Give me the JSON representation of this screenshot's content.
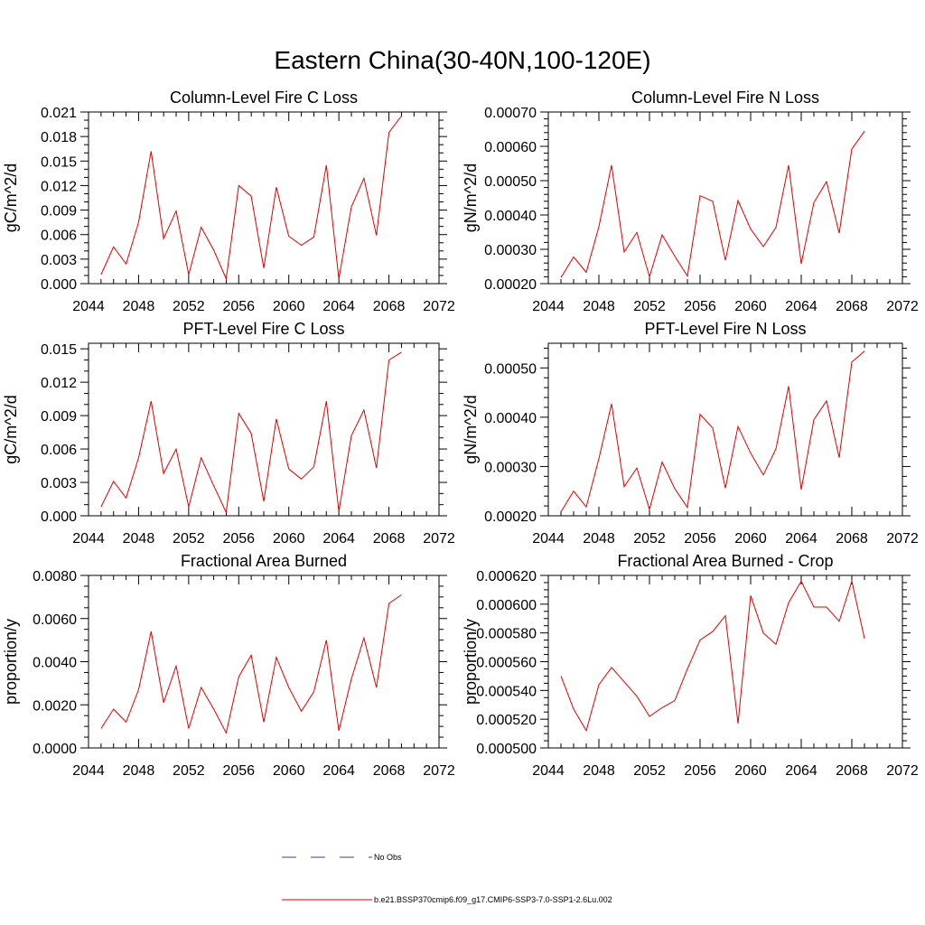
{
  "figure": {
    "title": "Eastern China(30-40N,100-120E)"
  },
  "legend": {
    "items": [
      {
        "label": "No Obs",
        "style": "dashed",
        "color": "#3b3b8f"
      },
      {
        "label": "b.e21.BSSP370cmip6.f09_g17.CMIP6-SSP3-7.0-SSP1-2.6Lu.002",
        "style": "solid",
        "color": "#e00000"
      }
    ]
  },
  "chart_data": [
    {
      "type": "line",
      "title": "Column-Level Fire C Loss",
      "ylabel": "gC/m^2/d",
      "xlim": [
        2044,
        2072
      ],
      "ylim": [
        0.0,
        0.021
      ],
      "xticks": [
        2044,
        2048,
        2052,
        2056,
        2060,
        2064,
        2068,
        2072
      ],
      "xtick_labels": [
        "2044",
        "2048",
        "2052",
        "2056",
        "2060",
        "2064",
        "2068",
        "2072"
      ],
      "yticks": [
        0,
        0.003,
        0.006,
        0.009,
        0.012,
        0.015,
        0.018,
        0.021
      ],
      "ytick_labels": [
        "0.000",
        "0.003",
        "0.006",
        "0.009",
        "0.012",
        "0.015",
        "0.018",
        "0.021"
      ],
      "y_minor_per_major": 3,
      "series": [
        {
          "color": "#e00000",
          "x": [
            2045,
            2046,
            2047,
            2048,
            2049,
            2050,
            2051,
            2052,
            2053,
            2054,
            2055,
            2056,
            2057,
            2058,
            2059,
            2060,
            2061,
            2062,
            2063,
            2064,
            2065,
            2066,
            2067,
            2068,
            2069
          ],
          "y": [
            0.0011,
            0.0045,
            0.0024,
            0.0075,
            0.0162,
            0.0055,
            0.0089,
            0.0011,
            0.0069,
            0.0041,
            0.0006,
            0.012,
            0.0107,
            0.0019,
            0.0118,
            0.0058,
            0.0047,
            0.0057,
            0.0145,
            0.0006,
            0.0094,
            0.0129,
            0.0059,
            0.0185,
            0.0205
          ]
        }
      ]
    },
    {
      "type": "line",
      "title": "Column-Level Fire N Loss",
      "ylabel": "gN/m^2/d",
      "xlim": [
        2044,
        2072
      ],
      "ylim": [
        0.0002,
        0.0007
      ],
      "xticks": [
        2044,
        2048,
        2052,
        2056,
        2060,
        2064,
        2068,
        2072
      ],
      "xtick_labels": [
        "2044",
        "2048",
        "2052",
        "2056",
        "2060",
        "2064",
        "2068",
        "2072"
      ],
      "yticks": [
        0.0002,
        0.0003,
        0.0004,
        0.0005,
        0.0006,
        0.0007
      ],
      "ytick_labels": [
        "0.00020",
        "0.00030",
        "0.00040",
        "0.00050",
        "0.00060",
        "0.00070"
      ],
      "y_minor_per_major": 5,
      "series": [
        {
          "color": "#e00000",
          "x": [
            2045,
            2046,
            2047,
            2048,
            2049,
            2050,
            2051,
            2052,
            2053,
            2054,
            2055,
            2056,
            2057,
            2058,
            2059,
            2060,
            2061,
            2062,
            2063,
            2064,
            2065,
            2066,
            2067,
            2068,
            2069
          ],
          "y": [
            0.000218,
            0.000278,
            0.000233,
            0.000366,
            0.000545,
            0.000292,
            0.000349,
            0.00022,
            0.000342,
            0.00028,
            0.000222,
            0.000456,
            0.00044,
            0.000268,
            0.000442,
            0.000359,
            0.000308,
            0.000364,
            0.000545,
            0.000258,
            0.000436,
            0.000497,
            0.000347,
            0.000592,
            0.000644
          ]
        }
      ]
    },
    {
      "type": "line",
      "title": "PFT-Level Fire C Loss",
      "ylabel": "gC/m^2/d",
      "xlim": [
        2044,
        2072
      ],
      "ylim": [
        0.0,
        0.0155
      ],
      "xticks": [
        2044,
        2048,
        2052,
        2056,
        2060,
        2064,
        2068,
        2072
      ],
      "xtick_labels": [
        "2044",
        "2048",
        "2052",
        "2056",
        "2060",
        "2064",
        "2068",
        "2072"
      ],
      "yticks": [
        0,
        0.003,
        0.006,
        0.009,
        0.012,
        0.015
      ],
      "ytick_labels": [
        "0.000",
        "0.003",
        "0.006",
        "0.009",
        "0.012",
        "0.015"
      ],
      "y_minor_per_major": 3,
      "series": [
        {
          "color": "#e00000",
          "x": [
            2045,
            2046,
            2047,
            2048,
            2049,
            2050,
            2051,
            2052,
            2053,
            2054,
            2055,
            2056,
            2057,
            2058,
            2059,
            2060,
            2061,
            2062,
            2063,
            2064,
            2065,
            2066,
            2067,
            2068,
            2069
          ],
          "y": [
            0.0008,
            0.0031,
            0.0016,
            0.0052,
            0.0103,
            0.0038,
            0.006,
            0.0008,
            0.0052,
            0.0027,
            0.0003,
            0.0092,
            0.0074,
            0.0013,
            0.0087,
            0.0042,
            0.0033,
            0.0044,
            0.0103,
            0.0004,
            0.0072,
            0.0095,
            0.0043,
            0.014,
            0.0147
          ]
        }
      ]
    },
    {
      "type": "line",
      "title": "PFT-Level Fire N Loss",
      "ylabel": "gN/m^2/d",
      "xlim": [
        2044,
        2072
      ],
      "ylim": [
        0.0002,
        0.00055
      ],
      "xticks": [
        2044,
        2048,
        2052,
        2056,
        2060,
        2064,
        2068,
        2072
      ],
      "xtick_labels": [
        "2044",
        "2048",
        "2052",
        "2056",
        "2060",
        "2064",
        "2068",
        "2072"
      ],
      "yticks": [
        0.0002,
        0.0003,
        0.0004,
        0.0005
      ],
      "ytick_labels": [
        "0.00020",
        "0.00030",
        "0.00040",
        "0.00050"
      ],
      "y_minor_per_major": 5,
      "series": [
        {
          "color": "#e00000",
          "x": [
            2045,
            2046,
            2047,
            2048,
            2049,
            2050,
            2051,
            2052,
            2053,
            2054,
            2055,
            2056,
            2057,
            2058,
            2059,
            2060,
            2061,
            2062,
            2063,
            2064,
            2065,
            2066,
            2067,
            2068,
            2069
          ],
          "y": [
            0.000208,
            0.00025,
            0.000218,
            0.000316,
            0.000427,
            0.000259,
            0.000297,
            0.000213,
            0.000309,
            0.000255,
            0.000217,
            0.000406,
            0.000378,
            0.000256,
            0.000381,
            0.000327,
            0.000283,
            0.000336,
            0.000463,
            0.000253,
            0.000395,
            0.000433,
            0.000318,
            0.000512,
            0.000534
          ]
        }
      ]
    },
    {
      "type": "line",
      "title": "Fractional Area Burned",
      "ylabel": "proportion/y",
      "xlim": [
        2044,
        2072
      ],
      "ylim": [
        0.0,
        0.008
      ],
      "xticks": [
        2044,
        2048,
        2052,
        2056,
        2060,
        2064,
        2068,
        2072
      ],
      "xtick_labels": [
        "2044",
        "2048",
        "2052",
        "2056",
        "2060",
        "2064",
        "2068",
        "2072"
      ],
      "yticks": [
        0,
        0.002,
        0.004,
        0.006,
        0.008
      ],
      "ytick_labels": [
        "0.0000",
        "0.0020",
        "0.0040",
        "0.0060",
        "0.0080"
      ],
      "y_minor_per_major": 4,
      "series": [
        {
          "color": "#e00000",
          "x": [
            2045,
            2046,
            2047,
            2048,
            2049,
            2050,
            2051,
            2052,
            2053,
            2054,
            2055,
            2056,
            2057,
            2058,
            2059,
            2060,
            2061,
            2062,
            2063,
            2064,
            2065,
            2066,
            2067,
            2068,
            2069
          ],
          "y": [
            0.0009,
            0.0018,
            0.0012,
            0.0027,
            0.0054,
            0.0021,
            0.0038,
            0.0009,
            0.0028,
            0.0018,
            0.0007,
            0.0033,
            0.0043,
            0.0012,
            0.0042,
            0.0028,
            0.0017,
            0.0026,
            0.005,
            0.0008,
            0.0032,
            0.0051,
            0.0028,
            0.0067,
            0.0071
          ]
        }
      ]
    },
    {
      "type": "line",
      "title": "Fractional Area Burned - Crop",
      "ylabel": "proportion/y",
      "xlim": [
        2044,
        2072
      ],
      "ylim": [
        0.0005,
        0.00062
      ],
      "xticks": [
        2044,
        2048,
        2052,
        2056,
        2060,
        2064,
        2068,
        2072
      ],
      "xtick_labels": [
        "2044",
        "2048",
        "2052",
        "2056",
        "2060",
        "2064",
        "2068",
        "2072"
      ],
      "yticks": [
        0.0005,
        0.00052,
        0.00054,
        0.00056,
        0.00058,
        0.0006,
        0.00062
      ],
      "ytick_labels": [
        "0.000500",
        "0.000520",
        "0.000540",
        "0.000560",
        "0.000580",
        "0.000600",
        "0.000620"
      ],
      "y_minor_per_major": 4,
      "series": [
        {
          "color": "#e00000",
          "x": [
            2045,
            2046,
            2047,
            2048,
            2049,
            2050,
            2051,
            2052,
            2053,
            2054,
            2055,
            2056,
            2057,
            2058,
            2059,
            2060,
            2061,
            2062,
            2063,
            2064,
            2065,
            2066,
            2067,
            2068,
            2069
          ],
          "y": [
            0.00055,
            0.000527,
            0.000512,
            0.000544,
            0.000556,
            0.000546,
            0.000536,
            0.000522,
            0.000528,
            0.000533,
            0.000555,
            0.000575,
            0.000581,
            0.000592,
            0.000517,
            0.000606,
            0.00058,
            0.000572,
            0.000601,
            0.000616,
            0.000598,
            0.000598,
            0.000588,
            0.000616,
            0.000576
          ]
        }
      ]
    }
  ]
}
